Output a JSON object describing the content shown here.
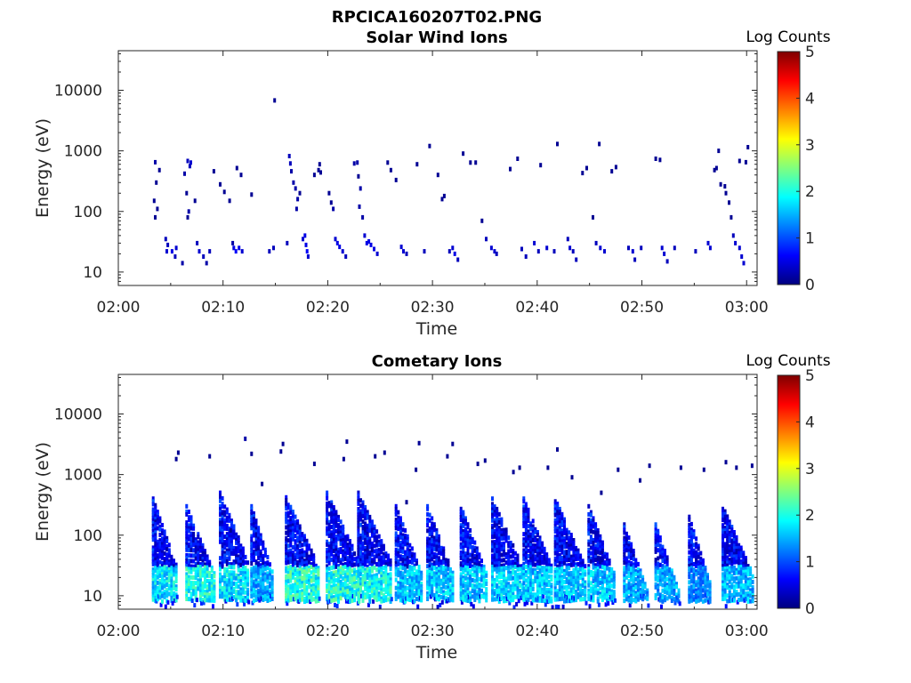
{
  "figure": {
    "title": "RPCICA160207T02.PNG"
  },
  "colormap": [
    "#00007f",
    "#0000ff",
    "#007fff",
    "#00ffff",
    "#7fff7f",
    "#ffff00",
    "#ff7f00",
    "#ff0000",
    "#7f0000"
  ],
  "chart_data": [
    {
      "type": "heatmap",
      "title": "Solar Wind Ions",
      "xlabel": "Time",
      "ylabel": "Energy (eV)",
      "x_ticks": [
        "02:00",
        "02:10",
        "02:20",
        "02:30",
        "02:40",
        "02:50",
        "03:00"
      ],
      "xlim_minutes": [
        0,
        61
      ],
      "y_ticks": [
        "10",
        "100",
        "1000",
        "10000"
      ],
      "y_scale": "log",
      "ylim": [
        6,
        45000
      ],
      "colorbar": {
        "label": "Log Counts",
        "ticks": [
          "0",
          "1",
          "2",
          "3",
          "4",
          "5"
        ],
        "range": [
          0,
          5
        ]
      },
      "points": [
        [
          3.4,
          650,
          0.2
        ],
        [
          3.8,
          480,
          0.1
        ],
        [
          3.5,
          300,
          0.1
        ],
        [
          3.3,
          150,
          0.1
        ],
        [
          3.6,
          110,
          0.1
        ],
        [
          3.4,
          80,
          0.1
        ],
        [
          4.4,
          35,
          0.3
        ],
        [
          4.6,
          28,
          0.3
        ],
        [
          4.5,
          22,
          0.4
        ],
        [
          5.0,
          22,
          0.5
        ],
        [
          5.4,
          25,
          0.4
        ],
        [
          5.3,
          18,
          0.3
        ],
        [
          6.0,
          14,
          0.2
        ],
        [
          6.5,
          680,
          0.3
        ],
        [
          6.8,
          640,
          0.4
        ],
        [
          6.7,
          560,
          0.3
        ],
        [
          6.2,
          420,
          0.2
        ],
        [
          6.4,
          200,
          0.1
        ],
        [
          6.6,
          100,
          0.2
        ],
        [
          6.5,
          80,
          0.1
        ],
        [
          7.2,
          150,
          0.1
        ],
        [
          7.4,
          30,
          0.3
        ],
        [
          7.6,
          22,
          0.4
        ],
        [
          8.0,
          18,
          0.3
        ],
        [
          8.3,
          14,
          0.2
        ],
        [
          8.6,
          22,
          0.3
        ],
        [
          9.0,
          460,
          0.1
        ],
        [
          9.6,
          280,
          0.1
        ],
        [
          10.0,
          210,
          0.1
        ],
        [
          10.5,
          150,
          0.1
        ],
        [
          10.8,
          30,
          0.2
        ],
        [
          10.9,
          25,
          0.5
        ],
        [
          11.1,
          22,
          0.6
        ],
        [
          11.4,
          25,
          0.5
        ],
        [
          11.7,
          22,
          0.4
        ],
        [
          11.2,
          520,
          0.1
        ],
        [
          11.6,
          400,
          0.1
        ],
        [
          12.6,
          190,
          0.1
        ],
        [
          14.3,
          22,
          0.3
        ],
        [
          14.7,
          25,
          0.3
        ],
        [
          14.8,
          6800,
          0.1
        ],
        [
          16.0,
          30,
          0.3
        ],
        [
          16.2,
          820,
          0.3
        ],
        [
          16.3,
          620,
          0.3
        ],
        [
          16.4,
          460,
          0.2
        ],
        [
          16.6,
          300,
          0.2
        ],
        [
          16.8,
          240,
          0.2
        ],
        [
          17.0,
          160,
          0.2
        ],
        [
          16.9,
          110,
          0.2
        ],
        [
          17.2,
          200,
          0.1
        ],
        [
          17.5,
          35,
          0.4
        ],
        [
          17.7,
          40,
          0.5
        ],
        [
          17.8,
          28,
          0.5
        ],
        [
          17.9,
          22,
          0.6
        ],
        [
          18.0,
          18,
          0.4
        ],
        [
          18.6,
          400,
          0.1
        ],
        [
          19.0,
          480,
          0.1
        ],
        [
          19.1,
          600,
          0.1
        ],
        [
          19.2,
          440,
          0.1
        ],
        [
          20.0,
          200,
          0.1
        ],
        [
          20.2,
          140,
          0.1
        ],
        [
          20.4,
          110,
          0.2
        ],
        [
          20.6,
          35,
          0.4
        ],
        [
          20.8,
          30,
          0.5
        ],
        [
          21.0,
          26,
          0.5
        ],
        [
          21.3,
          22,
          0.4
        ],
        [
          21.6,
          18,
          0.3
        ],
        [
          22.4,
          620,
          0.2
        ],
        [
          22.7,
          640,
          0.2
        ],
        [
          22.8,
          380,
          0.1
        ],
        [
          23.0,
          240,
          0.2
        ],
        [
          22.9,
          120,
          0.2
        ],
        [
          23.2,
          80,
          0.2
        ],
        [
          23.4,
          40,
          0.4
        ],
        [
          23.6,
          30,
          0.5
        ],
        [
          23.8,
          32,
          0.5
        ],
        [
          24.0,
          28,
          0.5
        ],
        [
          24.3,
          24,
          0.5
        ],
        [
          24.6,
          20,
          0.4
        ],
        [
          25.6,
          640,
          0.1
        ],
        [
          25.9,
          480,
          0.1
        ],
        [
          26.4,
          330,
          0.1
        ],
        [
          26.9,
          26,
          0.4
        ],
        [
          27.1,
          22,
          0.4
        ],
        [
          27.4,
          20,
          0.3
        ],
        [
          28.4,
          600,
          0.1
        ],
        [
          29.1,
          22,
          0.3
        ],
        [
          29.6,
          1200,
          0.1
        ],
        [
          30.4,
          400,
          0.1
        ],
        [
          30.8,
          160,
          0.1
        ],
        [
          31.0,
          180,
          0.1
        ],
        [
          31.5,
          22,
          0.3
        ],
        [
          31.8,
          25,
          0.4
        ],
        [
          32.0,
          20,
          0.5
        ],
        [
          32.3,
          16,
          0.3
        ],
        [
          32.8,
          900,
          0.1
        ],
        [
          33.5,
          640,
          0.1
        ],
        [
          34.0,
          640,
          0.1
        ],
        [
          34.6,
          70,
          0.1
        ],
        [
          35.0,
          35,
          0.3
        ],
        [
          35.5,
          25,
          0.4
        ],
        [
          35.8,
          22,
          0.4
        ],
        [
          36.0,
          20,
          0.3
        ],
        [
          37.3,
          500,
          0.1
        ],
        [
          38.0,
          740,
          0.1
        ],
        [
          38.4,
          24,
          0.3
        ],
        [
          38.8,
          18,
          0.3
        ],
        [
          39.6,
          30,
          0.4
        ],
        [
          40.0,
          22,
          0.3
        ],
        [
          40.2,
          580,
          0.1
        ],
        [
          40.8,
          25,
          0.4
        ],
        [
          41.5,
          22,
          0.3
        ],
        [
          41.8,
          1300,
          0.1
        ],
        [
          42.8,
          35,
          0.3
        ],
        [
          43.0,
          25,
          0.4
        ],
        [
          43.3,
          22,
          0.3
        ],
        [
          43.6,
          16,
          0.3
        ],
        [
          44.2,
          430,
          0.1
        ],
        [
          44.6,
          520,
          0.1
        ],
        [
          45.2,
          80,
          0.1
        ],
        [
          45.8,
          1300,
          0.1
        ],
        [
          45.5,
          30,
          0.3
        ],
        [
          45.9,
          25,
          0.4
        ],
        [
          46.3,
          22,
          0.4
        ],
        [
          47.0,
          460,
          0.1
        ],
        [
          47.4,
          540,
          0.1
        ],
        [
          48.6,
          25,
          0.3
        ],
        [
          49.0,
          22,
          0.4
        ],
        [
          49.2,
          16,
          0.3
        ],
        [
          49.8,
          25,
          0.3
        ],
        [
          51.2,
          740,
          0.1
        ],
        [
          51.6,
          710,
          0.1
        ],
        [
          51.8,
          25,
          0.4
        ],
        [
          52.0,
          20,
          0.4
        ],
        [
          52.3,
          15,
          0.3
        ],
        [
          53.0,
          25,
          0.3
        ],
        [
          55.0,
          22,
          0.3
        ],
        [
          56.2,
          30,
          0.4
        ],
        [
          56.4,
          25,
          0.4
        ],
        [
          56.8,
          480,
          0.1
        ],
        [
          57.0,
          520,
          0.1
        ],
        [
          57.4,
          280,
          0.1
        ],
        [
          57.8,
          260,
          0.1
        ],
        [
          57.9,
          200,
          0.1
        ],
        [
          58.2,
          140,
          0.1
        ],
        [
          58.4,
          80,
          0.1
        ],
        [
          58.6,
          40,
          0.3
        ],
        [
          58.8,
          30,
          0.4
        ],
        [
          59.2,
          25,
          0.4
        ],
        [
          59.4,
          18,
          0.4
        ],
        [
          59.6,
          14,
          0.4
        ],
        [
          59.2,
          680,
          0.1
        ],
        [
          59.8,
          650,
          0.1
        ],
        [
          60.0,
          1150,
          0.1
        ],
        [
          57.2,
          1000,
          0.1
        ]
      ]
    },
    {
      "type": "heatmap",
      "title": "Cometary Ions",
      "xlabel": "Time",
      "ylabel": "Energy (eV)",
      "x_ticks": [
        "02:00",
        "02:10",
        "02:20",
        "02:30",
        "02:40",
        "02:50",
        "03:00"
      ],
      "xlim_minutes": [
        0,
        61
      ],
      "y_ticks": [
        "10",
        "100",
        "1000",
        "10000"
      ],
      "y_scale": "log",
      "ylim": [
        6,
        45000
      ],
      "colorbar": {
        "label": "Log Counts",
        "ticks": [
          "0",
          "1",
          "2",
          "3",
          "4",
          "5"
        ],
        "range": [
          0,
          5
        ]
      },
      "bursts": [
        {
          "t": 3.2,
          "hi": 400,
          "w": 2.4,
          "peak": 2.2
        },
        {
          "t": 6.4,
          "hi": 300,
          "w": 2.8,
          "peak": 2.4
        },
        {
          "t": 9.6,
          "hi": 500,
          "w": 2.8,
          "peak": 2.2
        },
        {
          "t": 12.6,
          "hi": 300,
          "w": 2.2,
          "peak": 1.8
        },
        {
          "t": 15.9,
          "hi": 420,
          "w": 3.2,
          "peak": 2.5
        },
        {
          "t": 19.8,
          "hi": 500,
          "w": 3.4,
          "peak": 2.5
        },
        {
          "t": 22.8,
          "hi": 500,
          "w": 3.2,
          "peak": 2.4
        },
        {
          "t": 26.4,
          "hi": 300,
          "w": 2.6,
          "peak": 2.0
        },
        {
          "t": 29.4,
          "hi": 300,
          "w": 2.6,
          "peak": 2.0
        },
        {
          "t": 32.6,
          "hi": 300,
          "w": 2.6,
          "peak": 2.0
        },
        {
          "t": 35.6,
          "hi": 400,
          "w": 3.0,
          "peak": 2.1
        },
        {
          "t": 38.6,
          "hi": 400,
          "w": 2.8,
          "peak": 2.0
        },
        {
          "t": 41.6,
          "hi": 400,
          "w": 3.0,
          "peak": 2.0
        },
        {
          "t": 44.8,
          "hi": 300,
          "w": 2.6,
          "peak": 2.0
        },
        {
          "t": 48.2,
          "hi": 150,
          "w": 2.4,
          "peak": 1.8
        },
        {
          "t": 51.2,
          "hi": 150,
          "w": 2.4,
          "peak": 1.8
        },
        {
          "t": 54.4,
          "hi": 200,
          "w": 2.2,
          "peak": 1.6
        },
        {
          "t": 57.6,
          "hi": 300,
          "w": 3.0,
          "peak": 1.9
        }
      ],
      "sparse_points": [
        [
          5.4,
          1800,
          0.1
        ],
        [
          5.6,
          2300,
          0.1
        ],
        [
          8.6,
          2000,
          0.1
        ],
        [
          12.0,
          3900,
          0.2
        ],
        [
          12.6,
          2200,
          0.1
        ],
        [
          15.4,
          2400,
          0.1
        ],
        [
          15.6,
          3200,
          0.1
        ],
        [
          18.6,
          1500,
          0.1
        ],
        [
          21.7,
          3500,
          0.1
        ],
        [
          21.4,
          1800,
          0.1
        ],
        [
          24.4,
          2000,
          0.1
        ],
        [
          25.3,
          2300,
          0.1
        ],
        [
          28.6,
          3300,
          0.1
        ],
        [
          28.3,
          1200,
          0.1
        ],
        [
          31.8,
          3200,
          0.1
        ],
        [
          31.3,
          2000,
          0.1
        ],
        [
          34.2,
          1500,
          0.1
        ],
        [
          34.9,
          1700,
          0.1
        ],
        [
          37.6,
          1100,
          0.1
        ],
        [
          38.2,
          1300,
          0.1
        ],
        [
          40.9,
          1300,
          0.1
        ],
        [
          41.8,
          2600,
          0.1
        ],
        [
          43.2,
          900,
          0.1
        ],
        [
          47.6,
          1200,
          0.1
        ],
        [
          49.7,
          800,
          0.1
        ],
        [
          50.6,
          1400,
          0.1
        ],
        [
          53.6,
          1300,
          0.1
        ],
        [
          55.8,
          1200,
          0.1
        ],
        [
          57.9,
          1600,
          0.1
        ],
        [
          58.9,
          1300,
          0.1
        ],
        [
          60.4,
          1400,
          0.1
        ],
        [
          46.0,
          500,
          0.1
        ],
        [
          10.6,
          120,
          0.1
        ],
        [
          13.6,
          700,
          0.1
        ],
        [
          27.4,
          350,
          0.1
        ]
      ]
    }
  ]
}
